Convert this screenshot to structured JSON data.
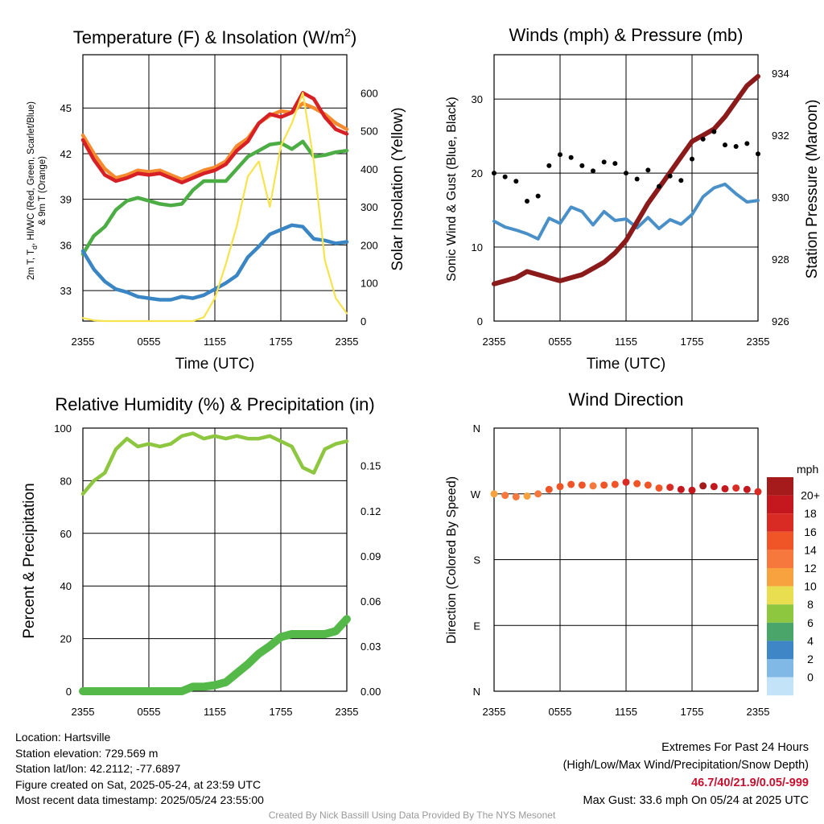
{
  "time_ticks": [
    "2355",
    "0555",
    "1155",
    "1755",
    "2355"
  ],
  "chart_data": [
    {
      "type": "line",
      "title": "Temperature (F) & Insolation (W/m²)",
      "xlabel": "Time (UTC)",
      "ylabel_left_line1": "2m T, Td, HI/WC (Red, Green, Scarlet/Blue)",
      "ylabel_left_line2": "& 9m T (Orange)",
      "ylabel_right": "Solar Insolation (Yellow)",
      "ylim_left": [
        31,
        48.5
      ],
      "yticks_left": [
        33,
        36,
        39,
        42,
        45
      ],
      "ylim_right": [
        0,
        700
      ],
      "yticks_right": [
        0,
        100,
        200,
        300,
        400,
        500,
        600
      ],
      "grid": true,
      "x_hours": [
        0,
        1,
        2,
        3,
        4,
        5,
        6,
        7,
        8,
        9,
        10,
        11,
        12,
        13,
        14,
        15,
        16,
        17,
        18,
        19,
        20,
        21,
        22,
        23,
        24
      ],
      "series": [
        {
          "color": "#f58a2e",
          "axis": "left",
          "values": [
            43.2,
            42.0,
            41.0,
            40.4,
            40.6,
            40.9,
            40.8,
            40.9,
            40.6,
            40.3,
            40.6,
            40.9,
            41.1,
            41.5,
            42.5,
            43.0,
            44.0,
            44.5,
            44.8,
            44.7,
            45.3,
            45.0,
            44.6,
            44.0,
            43.6
          ]
        },
        {
          "color": "#d71f26",
          "axis": "left",
          "values": [
            42.9,
            41.6,
            40.6,
            40.2,
            40.4,
            40.7,
            40.6,
            40.7,
            40.4,
            40.1,
            40.4,
            40.7,
            40.9,
            41.3,
            42.2,
            42.8,
            44.0,
            44.6,
            44.4,
            44.7,
            46.0,
            45.6,
            44.4,
            43.6,
            43.3
          ]
        },
        {
          "color": "#4cad45",
          "axis": "left",
          "values": [
            35.4,
            36.6,
            37.2,
            38.3,
            38.9,
            39.1,
            38.9,
            38.7,
            38.6,
            38.7,
            39.6,
            40.2,
            40.2,
            40.2,
            41.0,
            41.8,
            42.2,
            42.6,
            42.7,
            42.3,
            42.8,
            41.8,
            41.9,
            42.1,
            42.2
          ]
        },
        {
          "color": "#3a86c4",
          "axis": "left",
          "values": [
            35.6,
            34.4,
            33.6,
            33.1,
            32.9,
            32.6,
            32.5,
            32.4,
            32.4,
            32.6,
            32.5,
            32.7,
            33.1,
            33.5,
            34.0,
            35.2,
            35.9,
            36.7,
            37.0,
            37.3,
            37.2,
            36.4,
            36.3,
            36.1,
            36.2
          ]
        },
        {
          "color": "#f7e34c",
          "axis": "right",
          "values": [
            8,
            2,
            0,
            0,
            0,
            0,
            0,
            0,
            0,
            0,
            0,
            10,
            60,
            150,
            250,
            380,
            420,
            300,
            460,
            520,
            600,
            420,
            160,
            60,
            20
          ]
        }
      ]
    },
    {
      "type": "scatter",
      "title": "Winds (mph) & Pressure (mb)",
      "xlabel": "Time (UTC)",
      "ylabel_left": "Sonic Wind & Gust (Blue, Black)",
      "ylabel_right": "Station Pressure (Maroon)",
      "ylim_left": [
        0,
        36
      ],
      "yticks_left": [
        0,
        10,
        20,
        30
      ],
      "ylim_right": [
        926,
        934.6
      ],
      "yticks_right": [
        926,
        928,
        930,
        932,
        934
      ],
      "grid": true,
      "x_hours": [
        0,
        1,
        2,
        3,
        4,
        5,
        6,
        7,
        8,
        9,
        10,
        11,
        12,
        13,
        14,
        15,
        16,
        17,
        18,
        19,
        20,
        21,
        22,
        23,
        24
      ],
      "series": [
        {
          "color": "#4a90c8",
          "axis": "left",
          "values": [
            13.5,
            12.7,
            12.3,
            11.8,
            11.1,
            13.9,
            13.2,
            15.4,
            14.8,
            13.0,
            14.8,
            13.6,
            13.8,
            12.6,
            14.0,
            12.5,
            13.7,
            13.1,
            14.4,
            16.8,
            18.0,
            18.5,
            17.2,
            16.1,
            16.3
          ]
        },
        {
          "color": "#000000",
          "axis": "left",
          "values": [
            20.0,
            19.5,
            18.9,
            16.2,
            16.9,
            21.0,
            22.5,
            22.1,
            21.0,
            20.3,
            21.5,
            21.3,
            20.0,
            19.2,
            20.4,
            18.2,
            19.6,
            19.0,
            21.9,
            24.6,
            25.6,
            23.8,
            23.6,
            24.0,
            22.6
          ]
        },
        {
          "color": "#8b1a1a",
          "axis": "right",
          "values": [
            927.2,
            927.3,
            927.4,
            927.6,
            927.5,
            927.4,
            927.3,
            927.4,
            927.5,
            927.7,
            927.9,
            928.2,
            928.6,
            929.2,
            929.8,
            930.3,
            930.8,
            931.3,
            931.8,
            932.0,
            932.2,
            932.6,
            933.1,
            933.6,
            933.9
          ]
        }
      ]
    },
    {
      "type": "line",
      "title": "Relative Humidity (%) & Precipitation (in)",
      "ylabel_left": "Percent & Precipitation",
      "ylim_left": [
        0,
        100
      ],
      "yticks_left": [
        0,
        20,
        40,
        60,
        80,
        100
      ],
      "ylim_right": [
        0,
        0.175
      ],
      "yticks_right": [
        "0.00",
        "0.03",
        "0.06",
        "0.09",
        "0.12",
        "0.15"
      ],
      "grid": true,
      "x_hours": [
        0,
        1,
        2,
        3,
        4,
        5,
        6,
        7,
        8,
        9,
        10,
        11,
        12,
        13,
        14,
        15,
        16,
        17,
        18,
        19,
        20,
        21,
        22,
        23,
        24
      ],
      "series": [
        {
          "color": "#8dc63f",
          "axis": "left",
          "values": [
            75.0,
            80.0,
            83.0,
            92.0,
            96.0,
            93.0,
            94.0,
            93.0,
            94.0,
            97.0,
            98.0,
            96.0,
            97.0,
            96.0,
            97.0,
            96.0,
            96.0,
            97.0,
            95.0,
            93.0,
            85.0,
            83.0,
            92.0,
            94.0,
            95.0
          ]
        },
        {
          "color": "#54b948",
          "axis": "right",
          "values": [
            0.0,
            0.0,
            0.0,
            0.0,
            0.0,
            0.0,
            0.0,
            0.0,
            0.0,
            0.0,
            0.003,
            0.003,
            0.004,
            0.006,
            0.012,
            0.018,
            0.025,
            0.03,
            0.036,
            0.038,
            0.038,
            0.038,
            0.038,
            0.04,
            0.048
          ]
        }
      ]
    },
    {
      "type": "scatter",
      "title": "Wind Direction",
      "ylabel_left": "Direction (Colored By Speed)",
      "yticks_left": [
        "N",
        "E",
        "S",
        "W",
        "N"
      ],
      "ylim_left": [
        0,
        360
      ],
      "grid": true,
      "colorbar_title": "mph",
      "colorbar_labels": [
        "20+",
        "18",
        "16",
        "14",
        "12",
        "10",
        "8",
        "6",
        "4",
        "2",
        "0"
      ],
      "colorbar_colors": [
        "#a51b1b",
        "#c4181e",
        "#d92b24",
        "#f05527",
        "#f6783c",
        "#f8a23f",
        "#e8de4f",
        "#8dc63f",
        "#4aa56a",
        "#3f86c6",
        "#80b9e5",
        "#c2e3f8"
      ],
      "x_hours": [
        0,
        1,
        2,
        3,
        4,
        5,
        6,
        7,
        8,
        9,
        10,
        11,
        12,
        13,
        14,
        15,
        16,
        17,
        18,
        19,
        20,
        21,
        22,
        23,
        24
      ],
      "directions": [
        270,
        268,
        266,
        267,
        270,
        276,
        280,
        283,
        282,
        281,
        282,
        283,
        286,
        284,
        282,
        278,
        279,
        276,
        275,
        281,
        280,
        277,
        278,
        276,
        273
      ],
      "speeds_mph": [
        11,
        12,
        12,
        11,
        12,
        14,
        14,
        15,
        14,
        13,
        14,
        15,
        16,
        15,
        14,
        14,
        17,
        18,
        19,
        20,
        19,
        18,
        17,
        18,
        17
      ]
    }
  ],
  "info": {
    "location": "Location: Hartsville",
    "elevation": "Station elevation: 729.569 m",
    "latlon": "Station lat/lon: 42.2112; -77.6897",
    "created": "Figure created on Sat, 2025-05-24, at 23:59 UTC",
    "recent": "Most recent data timestamp: 2025/05/24 23:55:00"
  },
  "extremes": {
    "title": "Extremes For Past 24 Hours",
    "subtitle": "(High/Low/Max Wind/Precipitation/Snow Depth)",
    "values": "46.7/40/21.9/0.05/-999",
    "max_gust": "Max Gust: 33.6 mph On 05/24 at 2025 UTC"
  },
  "credit": "Created By Nick Bassill Using Data Provided By The NYS Mesonet"
}
